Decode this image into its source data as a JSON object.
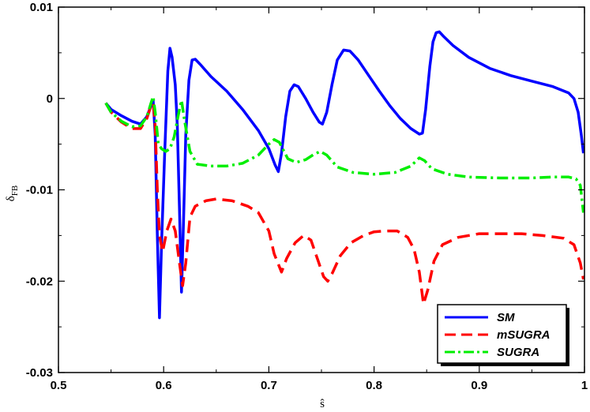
{
  "chart_data": {
    "type": "line",
    "xlabel": "ŝ",
    "ylabel": "δFB",
    "ylabel_main": "δ",
    "ylabel_sub": "FB",
    "xlim": [
      0.5,
      1.0
    ],
    "ylim": [
      -0.03,
      0.01
    ],
    "xticks": [
      0.5,
      0.6,
      0.7,
      0.8,
      0.9,
      1.0
    ],
    "xtick_labels": [
      "0.5",
      "0.6",
      "0.7",
      "0.8",
      "0.9",
      "1"
    ],
    "yticks": [
      -0.03,
      -0.02,
      -0.01,
      0.0,
      0.01
    ],
    "ytick_labels": [
      "-0.03",
      "-0.02",
      "-0.01",
      "0",
      "0.01"
    ],
    "grid": false,
    "legend_position": "bottom-right",
    "series": [
      {
        "name": "SM",
        "color": "#0000ff",
        "style": "solid",
        "points": [
          [
            0.545,
            -0.0005
          ],
          [
            0.55,
            -0.0012
          ],
          [
            0.56,
            -0.0019
          ],
          [
            0.57,
            -0.0025
          ],
          [
            0.578,
            -0.0028
          ],
          [
            0.584,
            -0.002
          ],
          [
            0.588,
            -0.0008
          ],
          [
            0.59,
            -0.0002
          ],
          [
            0.592,
            -0.004
          ],
          [
            0.594,
            -0.015
          ],
          [
            0.596,
            -0.024
          ],
          [
            0.598,
            -0.016
          ],
          [
            0.601,
            -0.006
          ],
          [
            0.604,
            0.003
          ],
          [
            0.606,
            0.0055
          ],
          [
            0.608,
            0.0045
          ],
          [
            0.611,
            0.0015
          ],
          [
            0.613,
            -0.003
          ],
          [
            0.615,
            -0.012
          ],
          [
            0.617,
            -0.0212
          ],
          [
            0.619,
            -0.013
          ],
          [
            0.621,
            -0.004
          ],
          [
            0.624,
            0.002
          ],
          [
            0.627,
            0.0042
          ],
          [
            0.63,
            0.0043
          ],
          [
            0.635,
            0.0037
          ],
          [
            0.645,
            0.0024
          ],
          [
            0.66,
            0.0008
          ],
          [
            0.675,
            -0.0012
          ],
          [
            0.69,
            -0.0035
          ],
          [
            0.7,
            -0.0055
          ],
          [
            0.706,
            -0.0073
          ],
          [
            0.709,
            -0.008
          ],
          [
            0.712,
            -0.006
          ],
          [
            0.716,
            -0.002
          ],
          [
            0.72,
            0.0008
          ],
          [
            0.724,
            0.0015
          ],
          [
            0.728,
            0.0013
          ],
          [
            0.735,
            0.0
          ],
          [
            0.742,
            -0.0015
          ],
          [
            0.748,
            -0.0026
          ],
          [
            0.751,
            -0.0028
          ],
          [
            0.755,
            -0.0015
          ],
          [
            0.76,
            0.0015
          ],
          [
            0.765,
            0.0042
          ],
          [
            0.771,
            0.0053
          ],
          [
            0.777,
            0.0052
          ],
          [
            0.785,
            0.0042
          ],
          [
            0.795,
            0.0025
          ],
          [
            0.805,
            0.0008
          ],
          [
            0.815,
            -0.0008
          ],
          [
            0.825,
            -0.0022
          ],
          [
            0.835,
            -0.0033
          ],
          [
            0.843,
            -0.0039
          ],
          [
            0.846,
            -0.0038
          ],
          [
            0.849,
            -0.0012
          ],
          [
            0.853,
            0.0035
          ],
          [
            0.856,
            0.0062
          ],
          [
            0.859,
            0.0072
          ],
          [
            0.862,
            0.0073
          ],
          [
            0.866,
            0.0068
          ],
          [
            0.875,
            0.0058
          ],
          [
            0.89,
            0.0045
          ],
          [
            0.91,
            0.0033
          ],
          [
            0.93,
            0.0025
          ],
          [
            0.95,
            0.0019
          ],
          [
            0.97,
            0.0013
          ],
          [
            0.985,
            0.0006
          ],
          [
            0.99,
            0.0
          ],
          [
            0.994,
            -0.0015
          ],
          [
            0.997,
            -0.004
          ],
          [
            0.999,
            -0.006
          ]
        ]
      },
      {
        "name": "mSUGRA",
        "color": "#ff0000",
        "style": "dashed",
        "points": [
          [
            0.545,
            -0.0005
          ],
          [
            0.55,
            -0.0015
          ],
          [
            0.56,
            -0.0026
          ],
          [
            0.57,
            -0.0033
          ],
          [
            0.578,
            -0.0033
          ],
          [
            0.584,
            -0.0022
          ],
          [
            0.588,
            -0.0008
          ],
          [
            0.59,
            -0.0005
          ],
          [
            0.592,
            -0.003
          ],
          [
            0.594,
            -0.01
          ],
          [
            0.596,
            -0.015
          ],
          [
            0.599,
            -0.0168
          ],
          [
            0.603,
            -0.0145
          ],
          [
            0.607,
            -0.0132
          ],
          [
            0.611,
            -0.0145
          ],
          [
            0.615,
            -0.018
          ],
          [
            0.618,
            -0.0205
          ],
          [
            0.621,
            -0.018
          ],
          [
            0.625,
            -0.013
          ],
          [
            0.63,
            -0.0118
          ],
          [
            0.64,
            -0.0112
          ],
          [
            0.65,
            -0.011
          ],
          [
            0.665,
            -0.0112
          ],
          [
            0.68,
            -0.0118
          ],
          [
            0.69,
            -0.0125
          ],
          [
            0.7,
            -0.0145
          ],
          [
            0.705,
            -0.017
          ],
          [
            0.712,
            -0.019
          ],
          [
            0.717,
            -0.0175
          ],
          [
            0.725,
            -0.0158
          ],
          [
            0.733,
            -0.015
          ],
          [
            0.74,
            -0.0155
          ],
          [
            0.746,
            -0.0175
          ],
          [
            0.752,
            -0.0195
          ],
          [
            0.756,
            -0.02
          ],
          [
            0.76,
            -0.0192
          ],
          [
            0.768,
            -0.0172
          ],
          [
            0.778,
            -0.0158
          ],
          [
            0.79,
            -0.015
          ],
          [
            0.8,
            -0.0146
          ],
          [
            0.81,
            -0.0145
          ],
          [
            0.822,
            -0.0145
          ],
          [
            0.832,
            -0.0152
          ],
          [
            0.838,
            -0.0165
          ],
          [
            0.843,
            -0.019
          ],
          [
            0.847,
            -0.0225
          ],
          [
            0.851,
            -0.021
          ],
          [
            0.857,
            -0.0178
          ],
          [
            0.865,
            -0.016
          ],
          [
            0.88,
            -0.0152
          ],
          [
            0.9,
            -0.0148
          ],
          [
            0.92,
            -0.0148
          ],
          [
            0.94,
            -0.0148
          ],
          [
            0.96,
            -0.015
          ],
          [
            0.98,
            -0.0153
          ],
          [
            0.99,
            -0.016
          ],
          [
            0.996,
            -0.018
          ],
          [
            0.999,
            -0.0198
          ]
        ]
      },
      {
        "name": "SUGRA",
        "color": "#00ee00",
        "style": "dashdot",
        "points": [
          [
            0.545,
            -0.0005
          ],
          [
            0.55,
            -0.0015
          ],
          [
            0.56,
            -0.0025
          ],
          [
            0.57,
            -0.0031
          ],
          [
            0.578,
            -0.003
          ],
          [
            0.584,
            -0.002
          ],
          [
            0.588,
            -0.0005
          ],
          [
            0.59,
            0.0002
          ],
          [
            0.592,
            -0.0015
          ],
          [
            0.595,
            -0.005
          ],
          [
            0.598,
            -0.0055
          ],
          [
            0.602,
            -0.0058
          ],
          [
            0.606,
            -0.0055
          ],
          [
            0.61,
            -0.0042
          ],
          [
            0.614,
            -0.0018
          ],
          [
            0.617,
            -0.0002
          ],
          [
            0.62,
            -0.0025
          ],
          [
            0.625,
            -0.0058
          ],
          [
            0.632,
            -0.0072
          ],
          [
            0.645,
            -0.0074
          ],
          [
            0.66,
            -0.0074
          ],
          [
            0.675,
            -0.0071
          ],
          [
            0.69,
            -0.0062
          ],
          [
            0.7,
            -0.005
          ],
          [
            0.705,
            -0.0045
          ],
          [
            0.71,
            -0.0048
          ],
          [
            0.718,
            -0.0066
          ],
          [
            0.726,
            -0.007
          ],
          [
            0.735,
            -0.0067
          ],
          [
            0.743,
            -0.0061
          ],
          [
            0.749,
            -0.0058
          ],
          [
            0.755,
            -0.0062
          ],
          [
            0.765,
            -0.0075
          ],
          [
            0.78,
            -0.0081
          ],
          [
            0.8,
            -0.0083
          ],
          [
            0.82,
            -0.0081
          ],
          [
            0.835,
            -0.0074
          ],
          [
            0.843,
            -0.0065
          ],
          [
            0.848,
            -0.0068
          ],
          [
            0.855,
            -0.0077
          ],
          [
            0.87,
            -0.0083
          ],
          [
            0.89,
            -0.0086
          ],
          [
            0.92,
            -0.0087
          ],
          [
            0.95,
            -0.0087
          ],
          [
            0.97,
            -0.0086
          ],
          [
            0.985,
            -0.0086
          ],
          [
            0.992,
            -0.0088
          ],
          [
            0.996,
            -0.0095
          ],
          [
            0.999,
            -0.0125
          ]
        ]
      }
    ]
  }
}
